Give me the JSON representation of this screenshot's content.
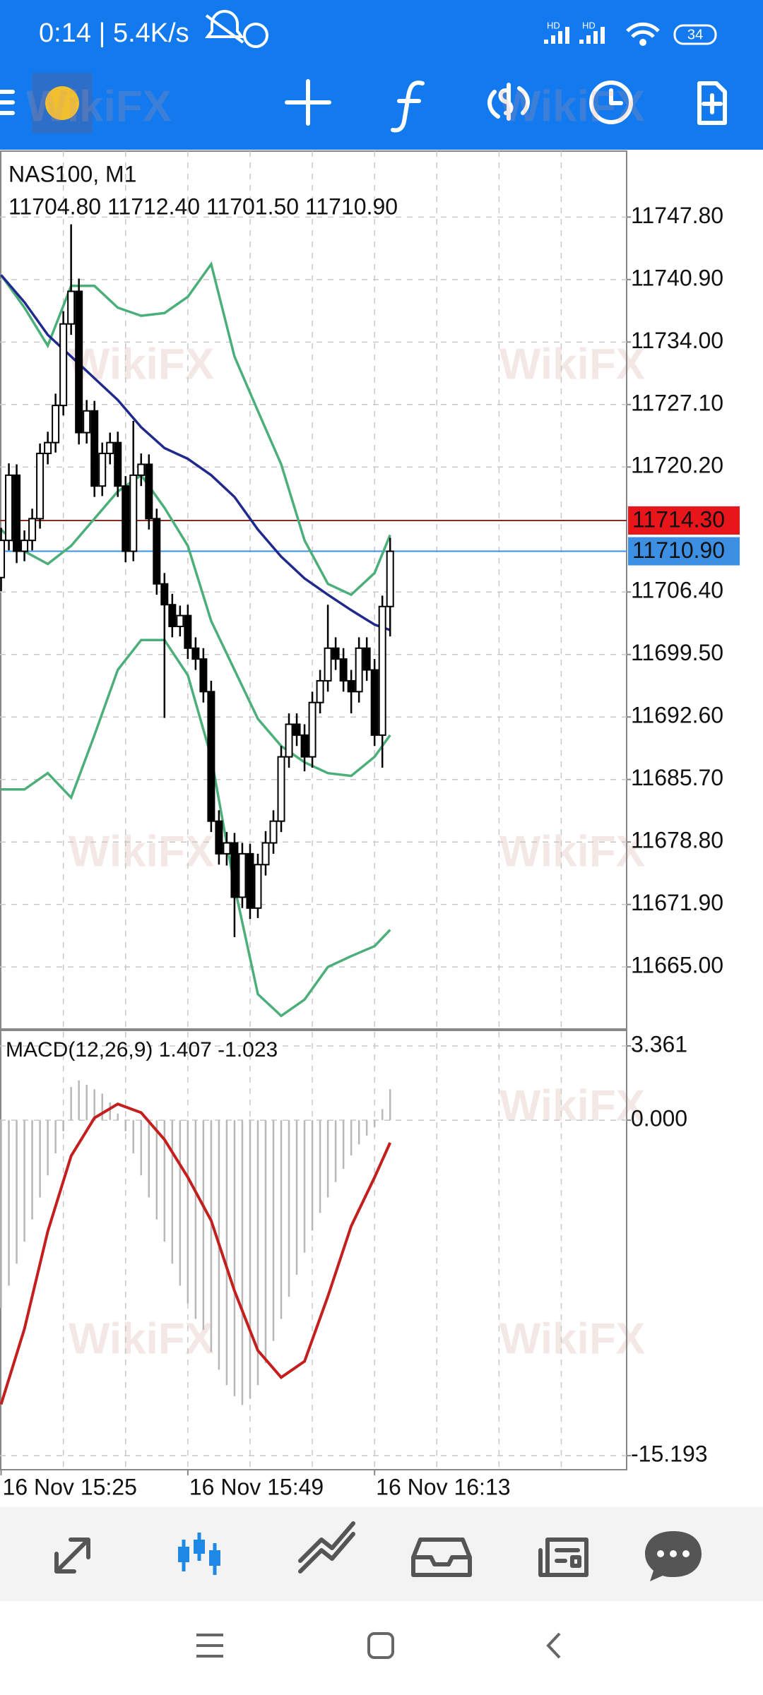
{
  "status_bar": {
    "time_speed": "0:14 | 5.4K/s",
    "network": [
      "HD",
      "HD"
    ],
    "battery": "34"
  },
  "watermark": "WikiFX",
  "chart_data": [
    {
      "type": "candlestick",
      "symbol_label": "NAS100, M1",
      "ohlc_label": "11704.80 11712.40 11701.50 11710.90",
      "x": [
        0,
        1,
        2,
        3,
        4,
        5,
        6,
        7,
        8,
        9,
        10,
        11,
        12,
        13,
        14,
        15,
        16,
        17,
        18,
        19,
        20,
        21,
        22,
        23,
        24,
        25,
        26,
        27,
        28,
        29,
        30,
        31,
        32,
        33,
        34,
        35,
        36,
        37,
        38,
        39,
        40,
        41,
        42,
        43,
        44,
        45,
        46,
        47,
        48,
        49,
        50
      ],
      "open": [
        11708.0,
        11712.1,
        11719.3,
        11710.9,
        11712.1,
        11714.5,
        11721.7,
        11722.9,
        11727.0,
        11736.0,
        11739.6,
        11724.0,
        11726.4,
        11718.1,
        11721.7,
        11722.9,
        11718.1,
        11710.9,
        11719.3,
        11720.5,
        11714.5,
        11707.3,
        11705.0,
        11702.6,
        11703.8,
        11700.2,
        11699.0,
        11695.4,
        11681.1,
        11677.5,
        11678.7,
        11672.7,
        11677.5,
        11671.5,
        11676.3,
        11678.7,
        11681.1,
        11688.2,
        11691.8,
        11690.6,
        11688.2,
        11694.2,
        11696.6,
        11700.2,
        11699.0,
        11696.6,
        11695.4,
        11700.2,
        11697.8,
        11690.6,
        11704.8
      ],
      "high": [
        11713.5,
        11720.6,
        11720.5,
        11713.2,
        11715.6,
        11722.8,
        11724.1,
        11728.3,
        11737.4,
        11747.0,
        11741.0,
        11727.6,
        11727.5,
        11722.9,
        11724.0,
        11724.1,
        11719.2,
        11725.3,
        11721.7,
        11721.6,
        11715.6,
        11708.5,
        11706.2,
        11704.9,
        11705.0,
        11701.4,
        11700.2,
        11696.6,
        11682.3,
        11679.9,
        11679.8,
        11678.7,
        11678.6,
        11677.5,
        11680.0,
        11682.3,
        11689.4,
        11693.0,
        11693.0,
        11691.8,
        11695.4,
        11697.8,
        11705.0,
        11701.4,
        11700.2,
        11697.8,
        11701.4,
        11701.4,
        11699.0,
        11706.0,
        11712.4
      ],
      "low": [
        11706.5,
        11711.0,
        11709.6,
        11709.8,
        11711.0,
        11713.4,
        11720.5,
        11721.8,
        11725.9,
        11734.8,
        11722.7,
        11722.8,
        11716.9,
        11717.0,
        11720.5,
        11716.9,
        11709.7,
        11709.8,
        11718.1,
        11713.3,
        11706.1,
        11692.5,
        11701.4,
        11701.5,
        11699.0,
        11697.8,
        11694.2,
        11679.9,
        11676.3,
        11676.2,
        11668.3,
        11671.5,
        11670.3,
        11670.4,
        11675.1,
        11677.5,
        11679.9,
        11687.0,
        11689.4,
        11686.6,
        11687.0,
        11693.0,
        11695.4,
        11697.8,
        11695.4,
        11693.0,
        11694.2,
        11696.6,
        11689.4,
        11687.0,
        11701.5
      ],
      "close": [
        11712.1,
        11719.3,
        11710.9,
        11712.1,
        11714.5,
        11721.7,
        11722.9,
        11727.0,
        11736.0,
        11739.6,
        11724.0,
        11726.4,
        11718.1,
        11721.7,
        11722.9,
        11718.1,
        11710.9,
        11719.3,
        11720.5,
        11714.5,
        11707.3,
        11705.0,
        11702.6,
        11703.8,
        11700.2,
        11699.0,
        11695.4,
        11681.1,
        11677.5,
        11678.7,
        11672.7,
        11677.5,
        11671.5,
        11676.3,
        11678.7,
        11681.1,
        11688.2,
        11691.8,
        11690.6,
        11688.2,
        11694.2,
        11696.6,
        11700.2,
        11699.0,
        11696.6,
        11695.4,
        11700.2,
        11697.8,
        11690.6,
        11704.8,
        11710.9
      ],
      "up_color": "#ffffff",
      "down_color": "#000000",
      "line_x": [
        0,
        3,
        6,
        9,
        12,
        15,
        18,
        21,
        24,
        27,
        30,
        33,
        36,
        39,
        42,
        45,
        48,
        50
      ],
      "lines": [
        {
          "color": "#4caf7a",
          "values": [
            11741.4,
            11737.8,
            11733.6,
            11740.2,
            11740.2,
            11737.8,
            11736.9,
            11737.2,
            11739.0,
            11742.6,
            11732.4,
            11726.4,
            11720.5,
            11712.1,
            11707.3,
            11706.1,
            11708.5,
            11712.7
          ]
        },
        {
          "color": "#4caf7a",
          "values": [
            11713.3,
            11710.9,
            11709.5,
            11711.5,
            11714.5,
            11717.5,
            11719.3,
            11715.7,
            11711.5,
            11703.2,
            11697.8,
            11692.4,
            11689.4,
            11687.6,
            11686.4,
            11686.1,
            11688.2,
            11690.6
          ]
        },
        {
          "color": "#4caf7a",
          "values": [
            11684.6,
            11684.6,
            11686.4,
            11683.7,
            11690.6,
            11697.8,
            11701.1,
            11701.1,
            11697.2,
            11688.2,
            11673.9,
            11662.0,
            11659.6,
            11661.4,
            11665.0,
            11666.2,
            11667.3,
            11669.1
          ]
        },
        {
          "color": "#1f2a8c",
          "values": [
            11741.4,
            11738.4,
            11734.8,
            11732.4,
            11730.0,
            11727.6,
            11724.6,
            11722.3,
            11721.1,
            11719.3,
            11716.9,
            11713.3,
            11710.3,
            11707.9,
            11706.1,
            11704.4,
            11702.8,
            11702.2
          ]
        }
      ],
      "price_lines": [
        {
          "value": 11714.3,
          "label": "11714.30",
          "color": "#e8161b",
          "line_color": "#8b2a22"
        },
        {
          "value": 11710.9,
          "label": "11710.90",
          "color": "#3d8fe3",
          "line_color": "#3d8fe3"
        }
      ],
      "xlim": [
        -0.14,
        80.4
      ],
      "ylim": [
        11658.15,
        11755.08
      ],
      "yticks": [
        {
          "value": 11747.8,
          "label": "11747.80"
        },
        {
          "value": 11740.9,
          "label": "11740.90"
        },
        {
          "value": 11734.0,
          "label": "11734.00"
        },
        {
          "value": 11727.1,
          "label": "11727.10"
        },
        {
          "value": 11720.2,
          "label": "11720.20"
        },
        {
          "value": 11706.4,
          "label": "11706.40"
        },
        {
          "value": 11699.5,
          "label": "11699.50"
        },
        {
          "value": 11692.6,
          "label": "11692.60"
        },
        {
          "value": 11685.7,
          "label": "11685.70"
        },
        {
          "value": 11678.8,
          "label": "11678.80"
        },
        {
          "value": 11671.9,
          "label": "11671.90"
        },
        {
          "value": 11665.0,
          "label": "11665.00"
        }
      ],
      "xgrid": [
        8,
        16,
        24,
        32,
        40,
        48,
        56,
        64,
        72
      ],
      "grid": true
    },
    {
      "type": "macd",
      "label": "MACD(12,26,9) 1.407 -1.023",
      "x": [
        0,
        1,
        2,
        3,
        4,
        5,
        6,
        7,
        8,
        9,
        10,
        11,
        12,
        13,
        14,
        15,
        16,
        17,
        18,
        19,
        20,
        21,
        22,
        23,
        24,
        25,
        26,
        27,
        28,
        29,
        30,
        31,
        32,
        33,
        34,
        35,
        36,
        37,
        38,
        39,
        40,
        41,
        42,
        43,
        44,
        45,
        46,
        47,
        48,
        49,
        50
      ],
      "values": [
        -8.5,
        -7.5,
        -6.5,
        -5.5,
        -4.5,
        -3.5,
        -2.5,
        -1.5,
        -0.5,
        1.5,
        1.8,
        1.6,
        1.4,
        1.2,
        0.8,
        0.3,
        -0.5,
        -1.5,
        -2.5,
        -3.5,
        -4.5,
        -5.5,
        -6.5,
        -7.5,
        -8.3,
        -9.0,
        -9.5,
        -10.5,
        -11.3,
        -12.0,
        -12.5,
        -12.9,
        -12.6,
        -12.0,
        -11.0,
        -10.0,
        -9.0,
        -8.0,
        -7.0,
        -6.0,
        -5.0,
        -4.2,
        -3.5,
        -2.8,
        -2.2,
        -1.6,
        -1.1,
        -0.7,
        -0.3,
        0.5,
        1.4
      ],
      "color": "#b8b8b8",
      "signal": {
        "x": [
          0,
          3,
          6,
          9,
          12,
          15,
          18,
          21,
          24,
          27,
          30,
          33,
          36,
          39,
          42,
          45,
          48,
          50
        ],
        "values": [
          -12.87,
          -9.45,
          -5.04,
          -1.62,
          0.1,
          0.73,
          0.34,
          -0.88,
          -2.59,
          -4.55,
          -7.73,
          -10.43,
          -11.65,
          -10.92,
          -7.98,
          -4.8,
          -2.59,
          -1.02
        ],
        "color": "#c41f1f"
      },
      "xlim": [
        -0.14,
        80.4
      ],
      "ylim": [
        -15.83,
        4.0
      ],
      "yticks": [
        3.361,
        {
          "value": 0,
          "label": "0.000"
        },
        -15.193
      ],
      "xticks": [
        {
          "value": 0,
          "label": "16 Nov 15:25"
        },
        {
          "value": 24,
          "label": "16 Nov 15:49"
        },
        {
          "value": 48,
          "label": "16 Nov 16:13"
        }
      ],
      "xgrid": [
        8,
        16,
        24,
        32,
        40,
        48,
        56,
        64,
        72
      ],
      "grid": true
    }
  ]
}
